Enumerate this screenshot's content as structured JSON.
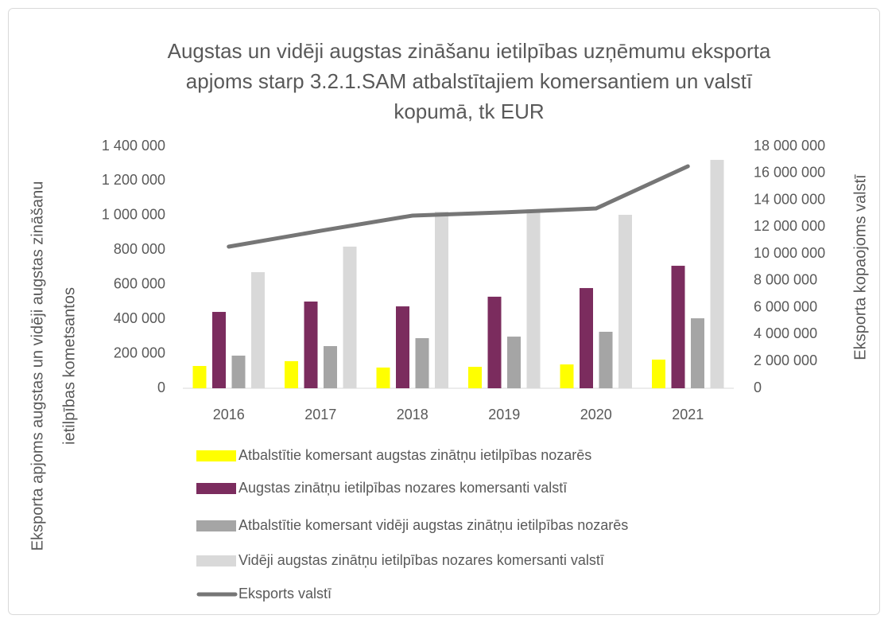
{
  "chart_data": {
    "type": "bar",
    "title": [
      "Augstas un vidēji augstas zināšanu ietilpības uzņēmumu eksporta",
      "apjoms starp 3.2.1.SAM atbalstītajiem komersantiem un valstī",
      "kopumā, tk EUR"
    ],
    "y_label": [
      "Eksporta apjoms augstas un vidēji augstas zināšanu",
      "ietilpības kometsantos"
    ],
    "y2_label": "Eksporta kopaojoms valstī",
    "categories": [
      "2016",
      "2017",
      "2018",
      "2019",
      "2020",
      "2021"
    ],
    "series": [
      {
        "name": "Atbalstītie komersant augstas zinātņu ietilpības nozarēs",
        "color": "#ffff00",
        "type": "bar",
        "values": [
          129000,
          157000,
          120000,
          124000,
          138000,
          166000
        ]
      },
      {
        "name": "Augstas zinātņu ietilpības nozares komersanti valstī",
        "color": "#7b2c5e",
        "type": "bar",
        "values": [
          442000,
          502000,
          474000,
          530000,
          580000,
          709000
        ]
      },
      {
        "name": "Atbalstītie komersant vidēji augstas zinātņu ietilpības nozarēs",
        "color": "#a5a5a5",
        "type": "bar",
        "values": [
          189000,
          244000,
          290000,
          299000,
          327000,
          405000
        ]
      },
      {
        "name": "Vidēji augstas zinātņu ietilpības nozares komersanti valstī",
        "color": "#d9d9d9",
        "type": "bar",
        "values": [
          672000,
          820000,
          1022000,
          1036000,
          1004000,
          1322000
        ]
      },
      {
        "name": "Eksports valstī",
        "color": "#767676",
        "type": "line",
        "axis": "y2",
        "values": [
          10540000,
          11720000,
          12850000,
          13090000,
          13380000,
          16520000
        ]
      }
    ],
    "ylim": [
      0,
      1400000
    ],
    "yticks": [
      0,
      {
        "value": 200000,
        "label": "200 000"
      },
      {
        "value": 400000,
        "label": "400 000"
      },
      {
        "value": 600000,
        "label": "600 000"
      },
      {
        "value": 800000,
        "label": "800 000"
      },
      {
        "value": 1000000,
        "label": "1 000 000"
      },
      {
        "value": 1200000,
        "label": "1 200 000"
      },
      {
        "value": 1400000,
        "label": "1 400 000"
      }
    ],
    "y2lim": [
      0,
      18000000
    ],
    "y2ticks": [
      0,
      {
        "value": 2000000,
        "label": "2 000 000"
      },
      {
        "value": 4000000,
        "label": "4 000 000"
      },
      {
        "value": 6000000,
        "label": "6 000 000"
      },
      {
        "value": 8000000,
        "label": "8 000 000"
      },
      {
        "value": 10000000,
        "label": "10 000 000"
      },
      {
        "value": 12000000,
        "label": "12 000 000"
      },
      {
        "value": 14000000,
        "label": "14 000 000"
      },
      {
        "value": 16000000,
        "label": "16 000 000"
      },
      {
        "value": 18000000,
        "label": "18 000 000"
      }
    ]
  }
}
